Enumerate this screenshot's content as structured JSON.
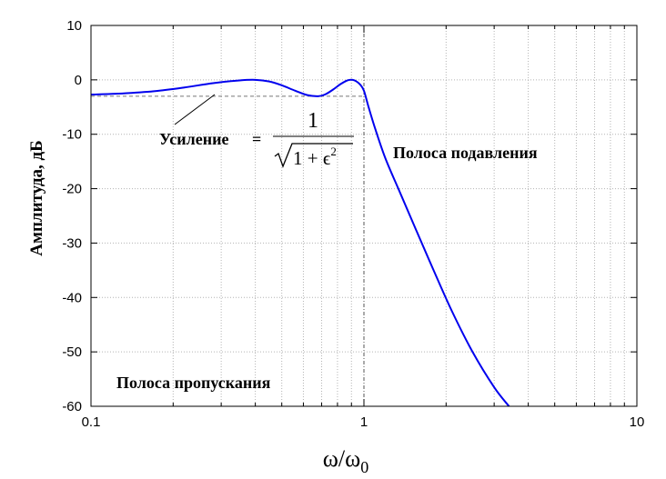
{
  "chart_data": {
    "type": "line",
    "title": "",
    "xlabel": "ω/ω",
    "xlabel_sub": "0",
    "ylabel": "Амплитуда, дБ",
    "xscale": "log",
    "xlim": [
      0.1,
      10
    ],
    "ylim": [
      -60,
      10
    ],
    "grid": true,
    "x_ticks": [
      0.1,
      1,
      10
    ],
    "x_tick_labels": [
      "0.1",
      "1",
      "10"
    ],
    "y_ticks": [
      10,
      0,
      -10,
      -20,
      -30,
      -40,
      -50,
      -60
    ],
    "y_tick_labels": [
      "10",
      "0",
      "-10",
      "-20",
      "-30",
      "-40",
      "-50",
      "-60"
    ],
    "annotations": {
      "passband": "Полоса пропускания",
      "stopband": "Полоса подавления",
      "gain_label": "Усиление",
      "gain_eq": "=",
      "gain_num": "1",
      "gain_den_pre": "1 + ϵ",
      "gain_den_sup": "2"
    },
    "ripple_level": -3,
    "cutoff_x": 1,
    "series": [
      {
        "color": "#0000ee",
        "x": [
          0.1,
          0.13,
          0.17,
          0.22,
          0.28,
          0.35,
          0.4,
          0.45,
          0.5,
          0.56,
          0.62,
          0.68,
          0.72,
          0.77,
          0.82,
          0.87,
          0.91,
          0.94,
          0.97,
          1.0,
          1.04,
          1.1,
          1.2,
          1.35,
          1.55,
          1.8,
          2.1,
          2.5,
          3.0,
          3.4
        ],
        "y": [
          -2.7,
          -2.5,
          -2.1,
          -1.4,
          -0.6,
          -0.1,
          0.0,
          -0.3,
          -1.0,
          -2.0,
          -2.8,
          -3.0,
          -2.7,
          -1.8,
          -0.8,
          -0.1,
          0.0,
          -0.3,
          -0.9,
          -2.0,
          -5.0,
          -9.0,
          -14.5,
          -20.5,
          -27.5,
          -35.0,
          -42.5,
          -50.0,
          -56.5,
          -60.0
        ]
      }
    ]
  }
}
